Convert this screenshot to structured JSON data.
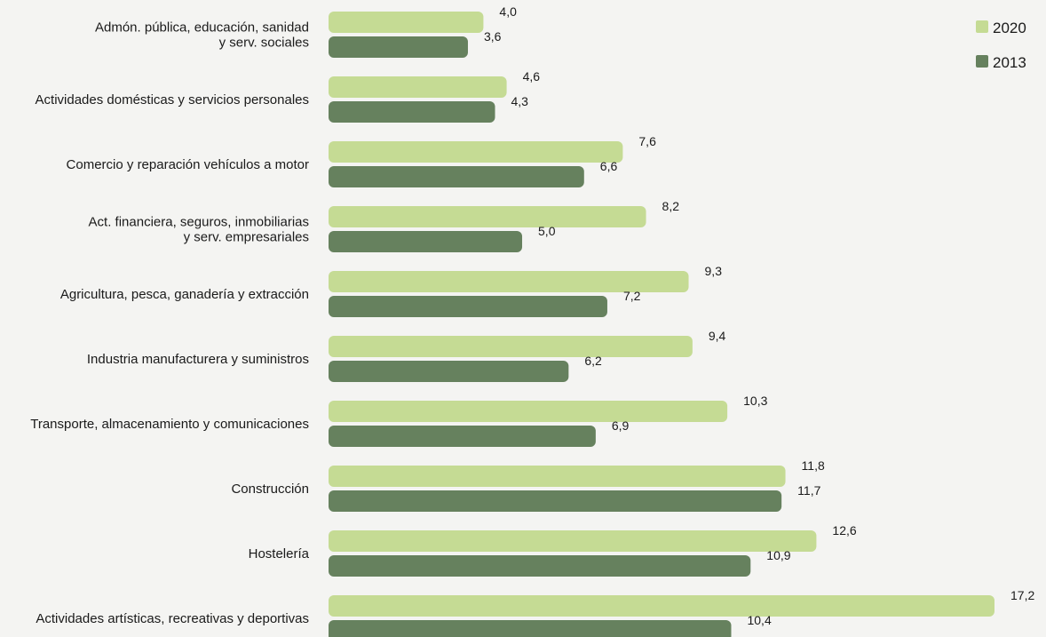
{
  "chart_data": {
    "type": "bar",
    "orientation": "horizontal",
    "categories": [
      [
        "Admón. pública, educación, sanidad",
        "y serv. sociales"
      ],
      [
        "Actividades domésticas y servicios personales"
      ],
      [
        "Comercio y reparación vehículos a motor"
      ],
      [
        "Act. financiera, seguros, inmobiliarias",
        "y serv. empresariales"
      ],
      [
        "Agricultura, pesca, ganadería y extracción"
      ],
      [
        "Industria manufacturera y suministros"
      ],
      [
        "Transporte, almacenamiento y comunicaciones"
      ],
      [
        "Construcción"
      ],
      [
        "Hostelería"
      ],
      [
        "Actividades artísticas, recreativas y deportivas"
      ]
    ],
    "series": [
      {
        "name": "2020",
        "color": "#c5db94",
        "values": [
          4.0,
          4.6,
          7.6,
          8.2,
          9.3,
          9.4,
          10.3,
          11.8,
          12.6,
          17.2
        ],
        "labels": [
          "4,0",
          "4,6",
          "7,6",
          "8,2",
          "9,3",
          "9,4",
          "10,3",
          "11,8",
          "12,6",
          "17,2"
        ]
      },
      {
        "name": "2013",
        "color": "#66815e",
        "values": [
          3.6,
          4.3,
          6.6,
          5.0,
          7.2,
          6.2,
          6.9,
          11.7,
          10.9,
          10.4
        ],
        "labels": [
          "3,6",
          "4,3",
          "6,6",
          "5,0",
          "7,2",
          "6,2",
          "6,9",
          "11,7",
          "10,9",
          "10,4"
        ]
      }
    ],
    "xlim": [
      0,
      17.2
    ],
    "grid": false,
    "legend_position": "top-right"
  }
}
